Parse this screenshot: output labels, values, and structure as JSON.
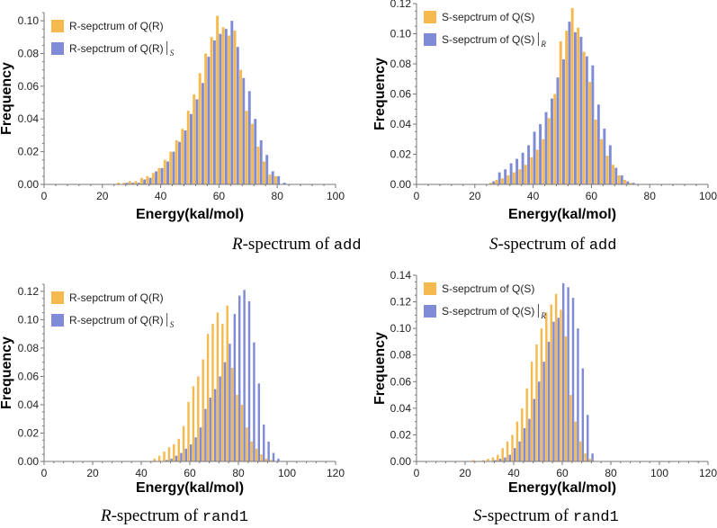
{
  "colors": {
    "orange": "#f6b94e",
    "blue": "#7f8bd6",
    "axis": "#777777",
    "text": "#222222"
  },
  "figure": {
    "panels": [
      {
        "caption": {
          "sym": "R",
          "text": "-spectrum of ",
          "code": "add"
        },
        "chart_data": {
          "type": "bar",
          "xlabel": "Energy(kal/mol)",
          "ylabel": "Frequency",
          "xlim": [
            0,
            100
          ],
          "ylim": [
            0,
            0.105
          ],
          "xticks": [
            0,
            20,
            40,
            60,
            80,
            100
          ],
          "xtick_labels": [
            "0",
            "20",
            "40",
            "60",
            "80",
            "100"
          ],
          "yticks": [
            0,
            0.02,
            0.04,
            0.06,
            0.08,
            0.1
          ],
          "ytick_labels": [
            "0.00",
            "0.02",
            "0.04",
            "0.06",
            "0.08",
            "0.10"
          ],
          "bin_width": 2,
          "x": [
            26,
            28,
            30,
            32,
            34,
            36,
            38,
            40,
            42,
            44,
            46,
            48,
            50,
            52,
            54,
            56,
            58,
            60,
            62,
            64,
            66,
            68,
            70,
            72,
            74,
            76,
            78,
            80,
            82
          ],
          "series": [
            {
              "name": "R-sepctrum of Q(R)",
              "sub": "",
              "color": "orange",
              "values": [
                0.001,
                0.001,
                0.002,
                0.002,
                0.004,
                0.005,
                0.007,
                0.01,
                0.015,
                0.02,
                0.027,
                0.034,
                0.045,
                0.055,
                0.068,
                0.08,
                0.09,
                0.103,
                0.096,
                0.091,
                0.094,
                0.07,
                0.045,
                0.037,
                0.023,
                0.014,
                0.006,
                0.005,
                0.0
              ]
            },
            {
              "name": "R-sepctrum of Q(R)",
              "sub": "S",
              "color": "blue",
              "values": [
                0.0,
                0.001,
                0.001,
                0.001,
                0.003,
                0.004,
                0.008,
                0.01,
                0.014,
                0.02,
                0.026,
                0.033,
                0.043,
                0.052,
                0.062,
                0.078,
                0.088,
                0.092,
                0.095,
                0.1,
                0.084,
                0.065,
                0.057,
                0.04,
                0.027,
                0.018,
                0.008,
                0.005,
                0.001
              ]
            }
          ]
        }
      },
      {
        "caption": {
          "sym": "S",
          "text": "-spectrum of ",
          "code": "add"
        },
        "chart_data": {
          "type": "bar",
          "xlabel": "Energy(kal/mol)",
          "ylabel": "Frequency",
          "xlim": [
            0,
            100
          ],
          "ylim": [
            0,
            0.12
          ],
          "xticks": [
            0,
            20,
            40,
            60,
            80,
            100
          ],
          "xtick_labels": [
            "0",
            "20",
            "40",
            "60",
            "80",
            "100"
          ],
          "yticks": [
            0,
            0.02,
            0.04,
            0.06,
            0.08,
            0.1,
            0.12
          ],
          "ytick_labels": [
            "0.00",
            "0.02",
            "0.04",
            "0.06",
            "0.08",
            "0.10",
            "0.12"
          ],
          "bin_width": 2,
          "x": [
            26,
            28,
            30,
            32,
            34,
            36,
            38,
            40,
            42,
            44,
            46,
            48,
            50,
            52,
            54,
            56,
            58,
            60,
            62,
            64,
            66,
            68,
            70,
            72,
            74
          ],
          "series": [
            {
              "name": "S-sepctrum of Q(S)",
              "sub": "",
              "color": "orange",
              "values": [
                0.001,
                0.003,
                0.004,
                0.006,
                0.008,
                0.01,
                0.013,
                0.018,
                0.023,
                0.03,
                0.044,
                0.06,
                0.095,
                0.102,
                0.117,
                0.104,
                0.088,
                0.068,
                0.043,
                0.03,
                0.019,
                0.013,
                0.006,
                0.003,
                0.001
              ]
            },
            {
              "name": "S-sepctrum of Q(S)",
              "sub": "R",
              "color": "blue",
              "values": [
                0.002,
                0.008,
                0.01,
                0.014,
                0.017,
                0.021,
                0.026,
                0.035,
                0.04,
                0.048,
                0.057,
                0.071,
                0.083,
                0.108,
                0.101,
                0.098,
                0.085,
                0.079,
                0.053,
                0.037,
                0.026,
                0.011,
                0.006,
                0.002,
                0.001
              ]
            }
          ]
        }
      },
      {
        "caption": {
          "sym": "R",
          "text": "-spectrum of ",
          "code": "rand1"
        },
        "chart_data": {
          "type": "bar",
          "xlabel": "Energy(kal/mol)",
          "ylabel": "Frequency",
          "xlim": [
            0,
            120
          ],
          "ylim": [
            0,
            0.125
          ],
          "xticks": [
            0,
            20,
            40,
            60,
            80,
            100,
            120
          ],
          "xtick_labels": [
            "0",
            "20",
            "40",
            "60",
            "80",
            "100",
            "120"
          ],
          "yticks": [
            0,
            0.02,
            0.04,
            0.06,
            0.08,
            0.1,
            0.12
          ],
          "ytick_labels": [
            "0.00",
            "0.02",
            "0.04",
            "0.06",
            "0.08",
            "0.10",
            "0.12"
          ],
          "bin_width": 2,
          "x": [
            46,
            48,
            50,
            52,
            54,
            56,
            58,
            60,
            62,
            64,
            66,
            68,
            70,
            72,
            74,
            76,
            78,
            80,
            82,
            84,
            86,
            88,
            90,
            92,
            94,
            96
          ],
          "series": [
            {
              "name": "R-sepctrum of Q(R)",
              "sub": "",
              "color": "orange",
              "values": [
                0.002,
                0.004,
                0.007,
                0.01,
                0.012,
                0.016,
                0.025,
                0.042,
                0.053,
                0.06,
                0.072,
                0.09,
                0.097,
                0.105,
                0.097,
                0.11,
                0.066,
                0.047,
                0.04,
                0.024,
                0.014,
                0.009,
                0.005,
                0.002,
                0.001,
                0.0
              ]
            },
            {
              "name": "R-sepctrum of Q(R)",
              "sub": "S",
              "color": "blue",
              "values": [
                0.0,
                0.0,
                0.001,
                0.002,
                0.004,
                0.006,
                0.009,
                0.012,
                0.017,
                0.024,
                0.037,
                0.045,
                0.051,
                0.06,
                0.07,
                0.083,
                0.104,
                0.117,
                0.121,
                0.113,
                0.084,
                0.055,
                0.026,
                0.014,
                0.006,
                0.002
              ]
            }
          ]
        }
      },
      {
        "caption": {
          "sym": "S",
          "text": "-spectrum of ",
          "code": "rand1"
        },
        "chart_data": {
          "type": "bar",
          "xlabel": "Energy(kal/mol)",
          "ylabel": "Frequency",
          "xlim": [
            0,
            120
          ],
          "ylim": [
            0,
            0.14
          ],
          "xticks": [
            0,
            20,
            40,
            60,
            80,
            100,
            120
          ],
          "xtick_labels": [
            "0",
            "20",
            "40",
            "60",
            "80",
            "100",
            "120"
          ],
          "yticks": [
            0,
            0.02,
            0.04,
            0.06,
            0.08,
            0.1,
            0.12,
            0.14
          ],
          "ytick_labels": [
            "0.00",
            "0.02",
            "0.04",
            "0.06",
            "0.08",
            "0.10",
            "0.12",
            "0.14"
          ],
          "bin_width": 2,
          "x": [
            24,
            26,
            28,
            30,
            32,
            34,
            36,
            38,
            40,
            42,
            44,
            46,
            48,
            50,
            52,
            54,
            56,
            58,
            60,
            62,
            64,
            66,
            68,
            70,
            72
          ],
          "series": [
            {
              "name": "S-sepctrum of Q(S)",
              "sub": "",
              "color": "orange",
              "values": [
                0.001,
                0.0,
                0.001,
                0.002,
                0.003,
                0.005,
                0.01,
                0.015,
                0.02,
                0.03,
                0.04,
                0.055,
                0.075,
                0.088,
                0.1,
                0.112,
                0.118,
                0.126,
                0.114,
                0.094,
                0.05,
                0.03,
                0.015,
                0.006,
                0.002
              ]
            },
            {
              "name": "S-sepctrum of Q(S)",
              "sub": "R",
              "color": "blue",
              "values": [
                0.0,
                0.0,
                0.0,
                0.0,
                0.001,
                0.002,
                0.003,
                0.005,
                0.01,
                0.015,
                0.025,
                0.032,
                0.047,
                0.06,
                0.075,
                0.09,
                0.105,
                0.108,
                0.134,
                0.131,
                0.123,
                0.1,
                0.07,
                0.035,
                0.006
              ]
            }
          ]
        }
      }
    ]
  }
}
